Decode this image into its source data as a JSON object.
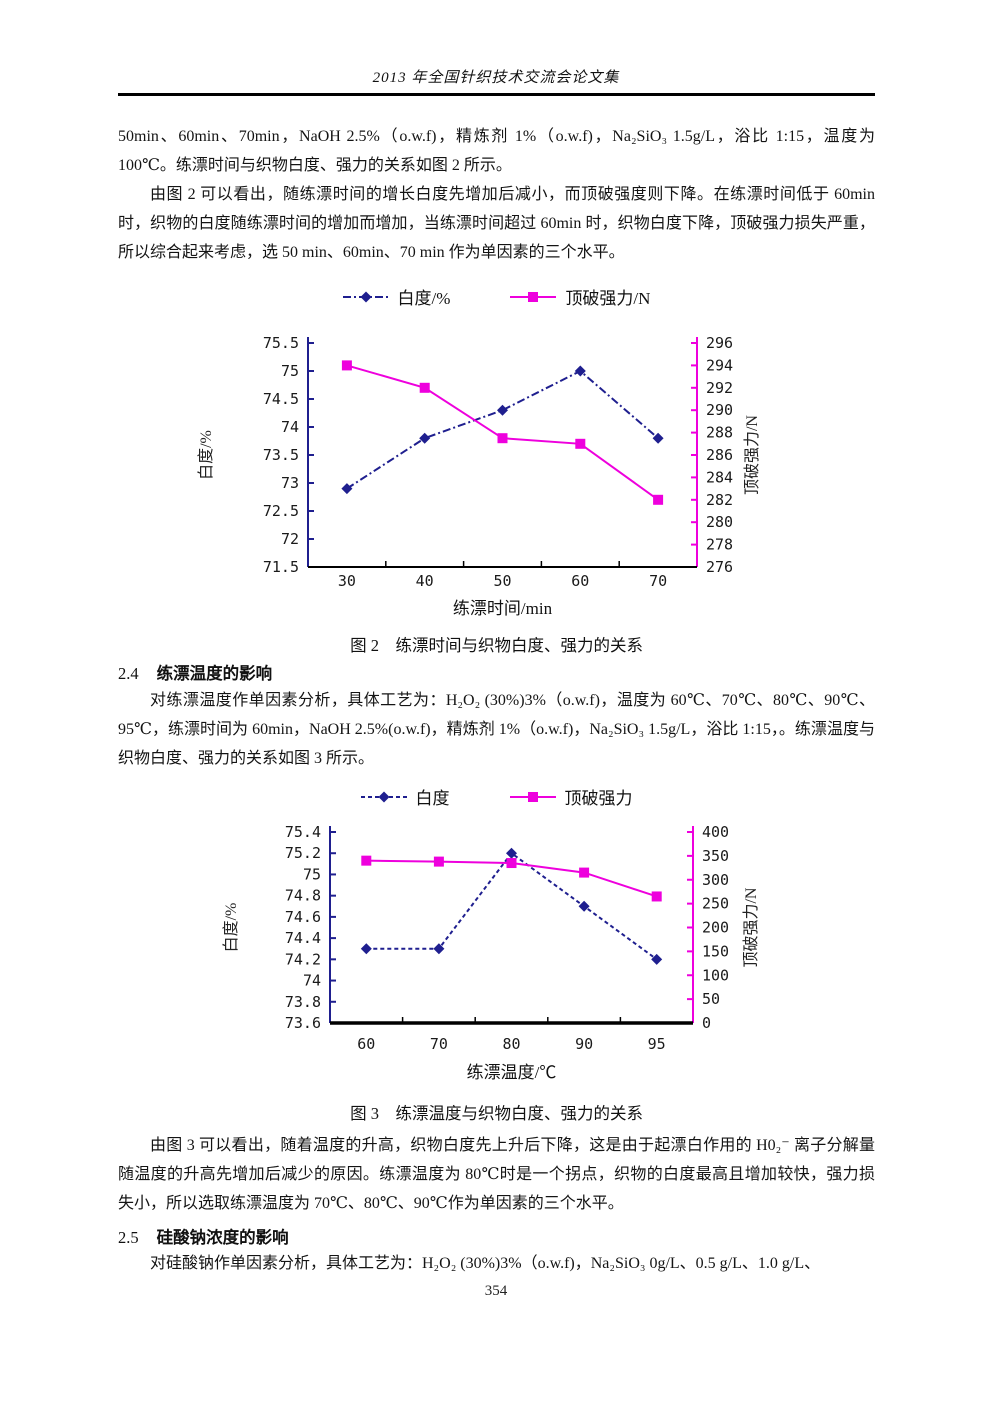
{
  "page": {
    "header": "2013 年全国针织技术交流会论文集",
    "page_number": "354"
  },
  "paragraphs": {
    "p1": "50min、60min、70min，NaOH 2.5%（o.w.f)，精炼剂 1%（o.w.f)，Na₂SiO₃ 1.5g/L，浴比 1:15，温度为 100℃。练漂时间与织物白度、强力的关系如图 2 所示。",
    "p2": "由图 2 可以看出，随练漂时间的增长白度先增加后减小，而顶破强度则下降。在练漂时间低于 60min 时，织物的白度随练漂时间的增加而增加，当练漂时间超过 60min 时，织物白度下降，顶破强力损失严重，所以综合起来考虑，选 50 min、60min、70 min 作为单因素的三个水平。",
    "p3": "对练漂温度作单因素分析，具体工艺为：H₂O₂ (30%)3%（o.w.f)，温度为 60℃、70℃、80℃、90℃、95℃，练漂时间为 60min，NaOH 2.5%(o.w.f)，精炼剂 1%（o.w.f)，Na₂SiO₃ 1.5g/L，浴比 1:15，。练漂温度与织物白度、强力的关系如图 3 所示。",
    "p4": "由图 3 可以看出，随着温度的升高，织物白度先上升后下降，这是由于起漂白作用的 H0₂⁻ 离子分解量随温度的升高先增加后减少的原因。练漂温度为 80℃时是一个拐点，织物的白度最高且增加较快，强力损失小，所以选取练漂温度为 70℃、80℃、90℃作为单因素的三个水平。",
    "p5": "对硅酸钠作单因素分析，具体工艺为：H₂O₂ (30%)3%（o.w.f)，Na₂SiO₃ 0g/L、0.5 g/L、1.0 g/L、"
  },
  "sections": {
    "s24": {
      "number": "2.4",
      "title": "练漂温度的影响"
    },
    "s25": {
      "number": "2.5",
      "title": "硅酸钠浓度的影响"
    }
  },
  "figures": {
    "fig2": {
      "caption": "图 2　练漂时间与织物白度、强力的关系"
    },
    "fig3": {
      "caption": "图 3　练漂温度与织物白度、强力的关系"
    }
  },
  "colors": {
    "whiteness_series": "#1f1f8f",
    "strength_series": "#ee00dd",
    "bottom_axis": "#000000"
  },
  "chart_data": [
    {
      "type": "line",
      "title": "图 2 练漂时间与织物白度、强力的关系",
      "categories": [
        30,
        40,
        50,
        60,
        70
      ],
      "xlabel": "练漂时间/min",
      "legend_position": "top",
      "grid": false,
      "left_axis": {
        "label": "白度/%",
        "min": 71.5,
        "max": 75.5,
        "tick_step": 0.5
      },
      "right_axis": {
        "label": "顶破强力/N",
        "min": 276,
        "max": 296,
        "tick_step": 2
      },
      "series": [
        {
          "name": "白度/%",
          "axis": "left",
          "values": [
            72.9,
            73.8,
            74.3,
            75.0,
            73.8
          ],
          "color": "#1f1f8f",
          "marker": "diamond",
          "line_style": "dash-dot"
        },
        {
          "name": "顶破强力/N",
          "axis": "right",
          "values": [
            294,
            292,
            287.5,
            287,
            282
          ],
          "color": "#ee00dd",
          "marker": "square",
          "line_style": "solid"
        }
      ]
    },
    {
      "type": "line",
      "title": "图 3 练漂温度与织物白度、强力的关系",
      "categories": [
        60,
        70,
        80,
        90,
        95
      ],
      "xlabel": "练漂温度/℃",
      "legend_position": "top",
      "grid": false,
      "left_axis": {
        "label": "白度/%",
        "min": 73.6,
        "max": 75.4,
        "tick_step": 0.2
      },
      "right_axis": {
        "label": "顶破强力/N",
        "min": 0,
        "max": 400,
        "tick_step": 50
      },
      "series": [
        {
          "name": "白度",
          "axis": "left",
          "values": [
            74.3,
            74.3,
            75.2,
            74.7,
            74.2
          ],
          "color": "#1f1f8f",
          "marker": "diamond",
          "line_style": "dashed"
        },
        {
          "name": "顶破强力",
          "axis": "right",
          "values": [
            340,
            338,
            335,
            315,
            265
          ],
          "color": "#ee00dd",
          "marker": "square",
          "line_style": "solid"
        }
      ]
    }
  ]
}
